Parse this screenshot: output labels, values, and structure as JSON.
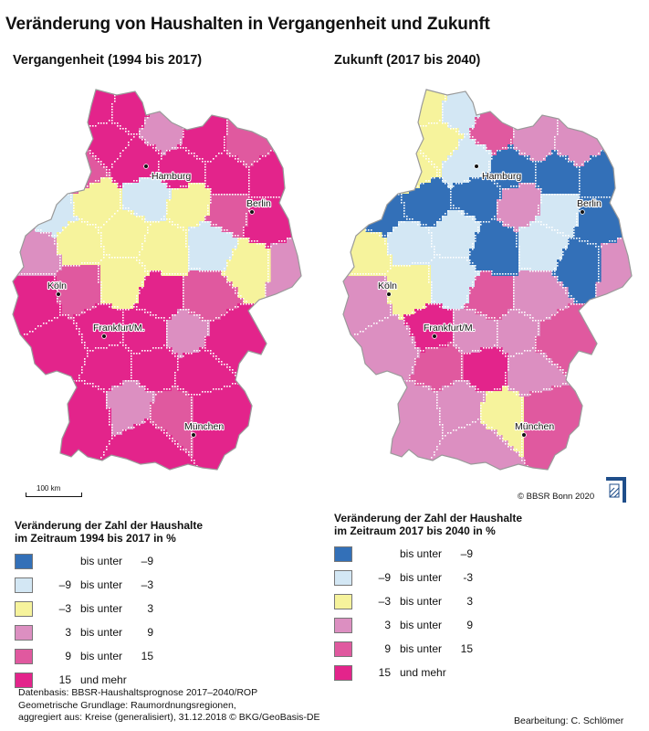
{
  "title": "Veränderung von Haushalten in Vergangenheit und Zukunft",
  "left_map": {
    "subtitle": "Vergangenheit (1994 bis 2017)",
    "scalebar": "100 km"
  },
  "right_map": {
    "subtitle": "Zukunft (2017 bis 2040)",
    "copyright": "© BBSR Bonn 2020"
  },
  "cities": [
    {
      "name": "Hamburg"
    },
    {
      "name": "Berlin"
    },
    {
      "name": "Köln"
    },
    {
      "name": "Frankfurt/M."
    },
    {
      "name": "München"
    }
  ],
  "colors": {
    "class1": "#3370b8",
    "class2": "#d3e7f4",
    "class3": "#f6f39c",
    "class4": "#dc8fc1",
    "class5": "#e0599f",
    "class6": "#e3248b",
    "border": "#ffffff",
    "outline": "#9a9a9a"
  },
  "legend_left": {
    "title_line1": "Veränderung der Zahl der Haushalte",
    "title_line2": "im Zeitraum 1994 bis 2017 in %",
    "classes": [
      {
        "color_key": "class1",
        "from": "",
        "word": "bis unter",
        "to": "–9"
      },
      {
        "color_key": "class2",
        "from": "–9",
        "word": "bis unter",
        "to": "–3"
      },
      {
        "color_key": "class3",
        "from": "–3",
        "word": "bis unter",
        "to": "3"
      },
      {
        "color_key": "class4",
        "from": "3",
        "word": "bis unter",
        "to": "9"
      },
      {
        "color_key": "class5",
        "from": "9",
        "word": "bis unter",
        "to": "15"
      },
      {
        "color_key": "class6",
        "from": "15",
        "word": "und mehr",
        "to": ""
      }
    ]
  },
  "legend_right": {
    "title_line1": "Veränderung der Zahl der Haushalte",
    "title_line2": "im Zeitraum 2017 bis 2040 in %",
    "classes": [
      {
        "color_key": "class1",
        "from": "",
        "word": "bis unter",
        "to": "–9"
      },
      {
        "color_key": "class2",
        "from": "–9",
        "word": "bis unter",
        "to": "-3"
      },
      {
        "color_key": "class3",
        "from": "–3",
        "word": "bis unter",
        "to": "3"
      },
      {
        "color_key": "class4",
        "from": "3",
        "word": "bis unter",
        "to": "9"
      },
      {
        "color_key": "class5",
        "from": "9",
        "word": "bis unter",
        "to": "15"
      },
      {
        "color_key": "class6",
        "from": "15",
        "word": "und mehr",
        "to": ""
      }
    ]
  },
  "footer": {
    "line1": "Datenbasis: BBSR-Haushaltsprognose 2017–2040/ROP",
    "line2": "Geometrische Grundlage: Raumordnungsregionen,",
    "line3": "aggregiert aus: Kreise (generalisiert), 31.12.2018 © BKG/GeoBasis-DE",
    "editor": "Bearbeitung: C. Schlömer"
  },
  "regions_past": [
    "class6",
    "class6",
    "class4",
    "class6",
    "class5",
    "class6",
    "class5",
    "class6",
    "class6",
    "class6",
    "class6",
    "class2",
    "class3",
    "class2",
    "class3",
    "class5",
    "class6",
    "class4",
    "class4",
    "class3",
    "class3",
    "class3",
    "class2",
    "class3",
    "class6",
    "class5",
    "class3",
    "class6",
    "class5",
    "class6",
    "class6",
    "class4",
    "class6",
    "class6",
    "class6",
    "class6",
    "class6",
    "class6",
    "class4",
    "class5",
    "class6",
    "class6"
  ],
  "regions_future": [
    "class3",
    "class2",
    "class5",
    "class4",
    "class4",
    "class3",
    "class3",
    "class2",
    "class1",
    "class1",
    "class1",
    "class1",
    "class1",
    "class1",
    "class4",
    "class2",
    "class1",
    "class4",
    "class3",
    "class2",
    "class2",
    "class1",
    "class2",
    "class1",
    "class4",
    "class3",
    "class2",
    "class5",
    "class4",
    "class6",
    "class4",
    "class4",
    "class5",
    "class4",
    "class5",
    "class6",
    "class4",
    "class4",
    "class4",
    "class3",
    "class5",
    "class4"
  ]
}
